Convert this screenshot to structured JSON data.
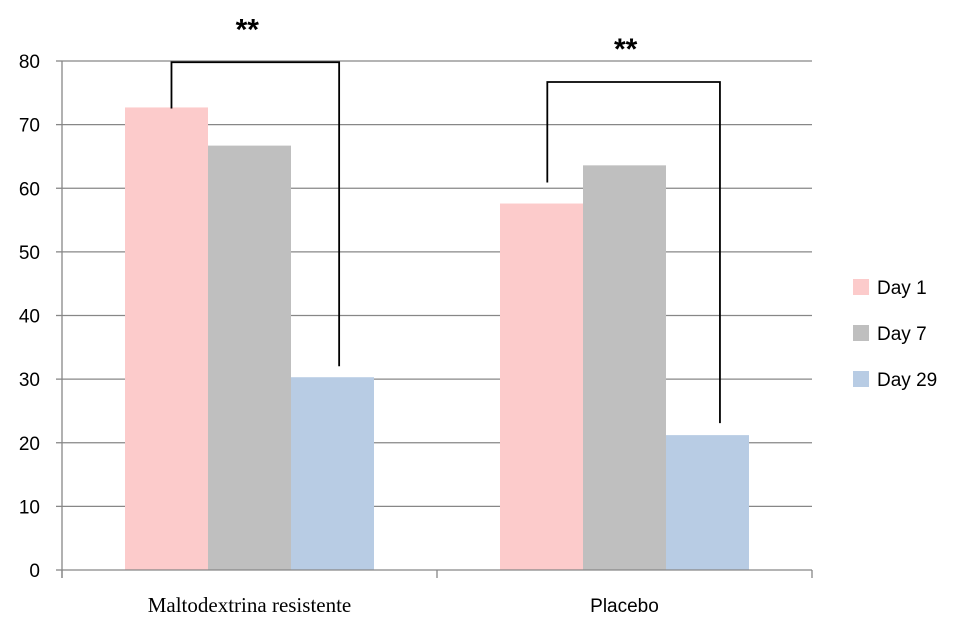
{
  "chart_data": {
    "type": "bar",
    "title": "",
    "xlabel": "",
    "ylabel": "",
    "ylim": [
      0,
      80
    ],
    "yticks": [
      "0",
      "10",
      "20",
      "30",
      "40",
      "50",
      "60",
      "70",
      "80"
    ],
    "grid": true,
    "legend_position": "right",
    "categories": [
      "Maltodextrina resistente",
      "Placebo"
    ],
    "series": [
      {
        "name": "Day 1",
        "color": "#fccbcb",
        "values": [
          72.7,
          57.6
        ]
      },
      {
        "name": "Day 7",
        "color": "#bfbfbf",
        "values": [
          66.7,
          63.6
        ]
      },
      {
        "name": "Day 29",
        "color": "#b8cce4",
        "values": [
          30.3,
          21.2
        ]
      }
    ],
    "annotations": [
      {
        "category": "Maltodextrina resistente",
        "from_series": "Day 1",
        "to_series": "Day 29",
        "bracket_level": 79.8,
        "label": "**"
      },
      {
        "category": "Placebo",
        "from_series": "Day 1",
        "to_series": "Day 29",
        "bracket_level": 76.7,
        "label": "**"
      }
    ]
  }
}
